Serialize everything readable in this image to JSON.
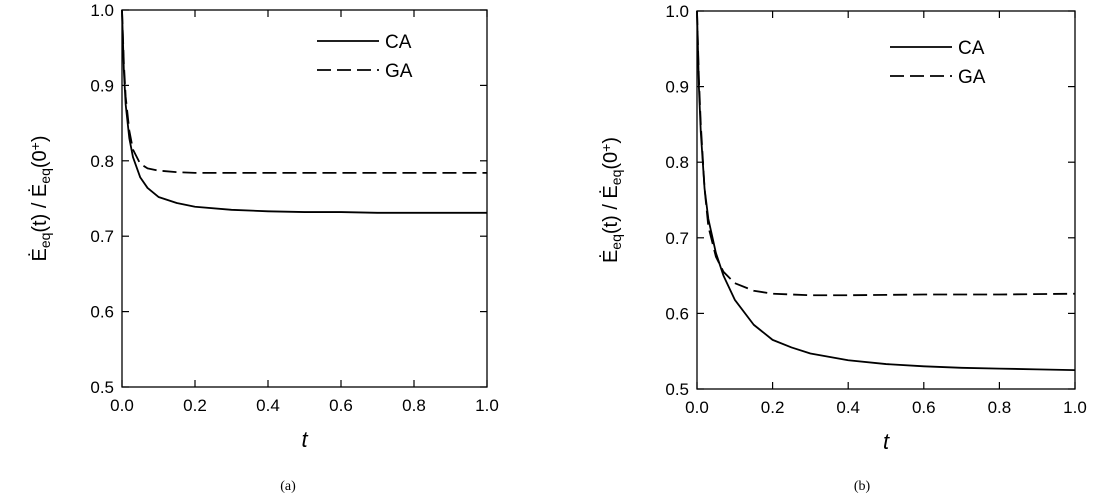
{
  "chart_data": [
    {
      "type": "line",
      "panel_label": "(a)",
      "xlabel": "t",
      "ylabel": "Ėeq(t) / Ėeq(0+)",
      "xlim": [
        0.0,
        1.0
      ],
      "ylim": [
        0.5,
        1.0
      ],
      "x_ticks": [
        "0.0",
        "0.2",
        "0.4",
        "0.6",
        "0.8",
        "1.0"
      ],
      "y_ticks": [
        "0.5",
        "0.6",
        "0.7",
        "0.8",
        "0.9",
        "1.0"
      ],
      "legend_position": "top-right",
      "grid": false,
      "series": [
        {
          "name": "CA",
          "style": "solid",
          "x": [
            0.0,
            0.005,
            0.01,
            0.02,
            0.03,
            0.05,
            0.07,
            0.1,
            0.15,
            0.2,
            0.3,
            0.4,
            0.5,
            0.6,
            0.7,
            0.8,
            0.9,
            1.0
          ],
          "y": [
            1.0,
            0.92,
            0.875,
            0.83,
            0.805,
            0.778,
            0.764,
            0.752,
            0.744,
            0.739,
            0.735,
            0.733,
            0.732,
            0.732,
            0.731,
            0.731,
            0.731,
            0.731
          ]
        },
        {
          "name": "GA",
          "style": "dashed",
          "x": [
            0.0,
            0.005,
            0.01,
            0.02,
            0.03,
            0.05,
            0.07,
            0.1,
            0.15,
            0.2,
            0.3,
            0.5,
            0.7,
            1.0
          ],
          "y": [
            1.0,
            0.93,
            0.885,
            0.84,
            0.815,
            0.796,
            0.79,
            0.787,
            0.785,
            0.784,
            0.784,
            0.784,
            0.784,
            0.784
          ]
        }
      ]
    },
    {
      "type": "line",
      "panel_label": "(b)",
      "xlabel": "t",
      "ylabel": "Ėeq(t) / Ėeq(0+)",
      "xlim": [
        0.0,
        1.0
      ],
      "ylim": [
        0.5,
        1.0
      ],
      "x_ticks": [
        "0.0",
        "0.2",
        "0.4",
        "0.6",
        "0.8",
        "1.0"
      ],
      "y_ticks": [
        "0.5",
        "0.6",
        "0.7",
        "0.8",
        "0.9",
        "1.0"
      ],
      "legend_position": "top-right",
      "grid": false,
      "series": [
        {
          "name": "CA",
          "style": "solid",
          "x": [
            0.0,
            0.005,
            0.01,
            0.02,
            0.03,
            0.05,
            0.07,
            0.1,
            0.15,
            0.2,
            0.25,
            0.3,
            0.4,
            0.5,
            0.6,
            0.7,
            0.8,
            0.9,
            1.0
          ],
          "y": [
            1.0,
            0.9,
            0.84,
            0.765,
            0.725,
            0.68,
            0.65,
            0.618,
            0.585,
            0.565,
            0.555,
            0.547,
            0.538,
            0.533,
            0.53,
            0.528,
            0.527,
            0.526,
            0.525
          ]
        },
        {
          "name": "GA",
          "style": "dashed",
          "x": [
            0.0,
            0.005,
            0.01,
            0.02,
            0.03,
            0.05,
            0.07,
            0.1,
            0.15,
            0.2,
            0.3,
            0.4,
            0.6,
            0.8,
            1.0
          ],
          "y": [
            1.0,
            0.91,
            0.85,
            0.765,
            0.715,
            0.675,
            0.655,
            0.64,
            0.63,
            0.626,
            0.624,
            0.624,
            0.625,
            0.625,
            0.626
          ]
        }
      ]
    }
  ]
}
